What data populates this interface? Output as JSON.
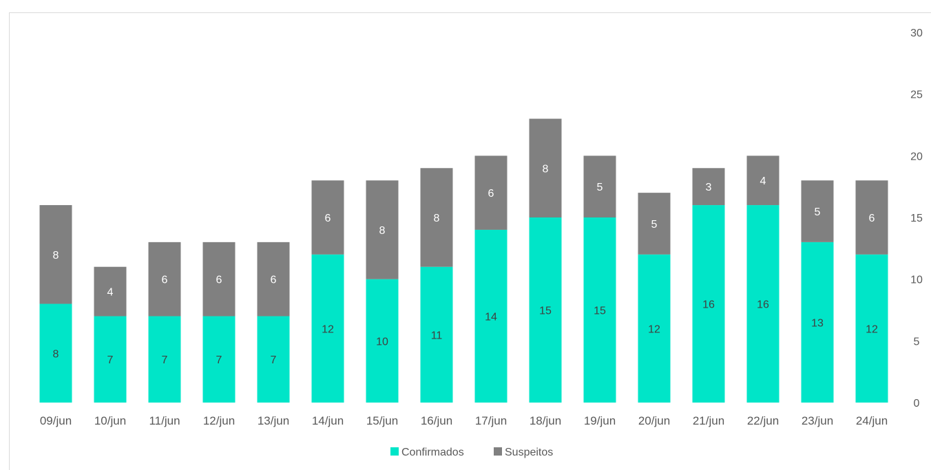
{
  "chart_data": {
    "type": "bar",
    "stacked": true,
    "categories": [
      "09/jun",
      "10/jun",
      "11/jun",
      "12/jun",
      "13/jun",
      "14/jun",
      "15/jun",
      "16/jun",
      "17/jun",
      "18/jun",
      "19/jun",
      "20/jun",
      "21/jun",
      "22/jun",
      "23/jun",
      "24/jun"
    ],
    "series": [
      {
        "name": "Confirmados",
        "color": "#00E5C8",
        "label_color": "#404040",
        "values": [
          8,
          7,
          7,
          7,
          7,
          12,
          10,
          11,
          14,
          15,
          15,
          12,
          16,
          16,
          13,
          12
        ]
      },
      {
        "name": "Suspeitos",
        "color": "#808080",
        "label_color": "#ffffff",
        "values": [
          8,
          4,
          6,
          6,
          6,
          6,
          8,
          8,
          6,
          8,
          5,
          5,
          3,
          4,
          5,
          6
        ]
      }
    ],
    "y_ticks": [
      "0",
      "5",
      "10",
      "15",
      "20",
      "25",
      "30"
    ],
    "ylim": [
      0,
      30
    ],
    "y_axis_side": "right",
    "grid": false,
    "legend_position": "bottom"
  }
}
